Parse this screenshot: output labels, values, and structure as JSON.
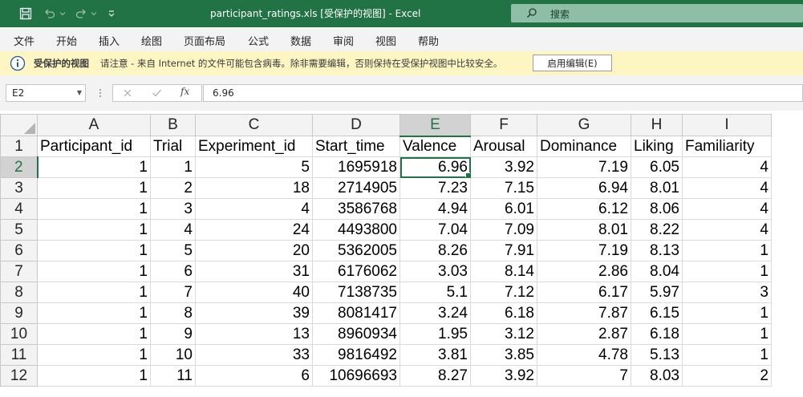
{
  "titlebar": {
    "title": "participant_ratings.xls  [受保护的视图]  -  Excel",
    "search_label": "搜索"
  },
  "menu": [
    "文件",
    "开始",
    "插入",
    "绘图",
    "页面布局",
    "公式",
    "数据",
    "审阅",
    "视图",
    "帮助"
  ],
  "protected_view": {
    "title": "受保护的视图",
    "message": "请注意 - 来自 Internet 的文件可能包含病毒。除非需要编辑，否则保持在受保护视图中比较安全。",
    "enable_button": "启用编辑(E)"
  },
  "formula_bar": {
    "name_box": "E2",
    "fx_label": "fx",
    "value": "6.96"
  },
  "grid": {
    "columns": [
      "A",
      "B",
      "C",
      "D",
      "E",
      "F",
      "G",
      "H",
      "I"
    ],
    "selected_column": "E",
    "selected_row": "2",
    "rows": [
      {
        "n": "1",
        "cells": [
          "Participant_id",
          "Trial",
          "Experiment_id",
          "Start_time",
          "Valence",
          "Arousal",
          "Dominance",
          "Liking",
          "Familiarity"
        ]
      },
      {
        "n": "2",
        "cells": [
          "1",
          "1",
          "5",
          "1695918",
          "6.96",
          "3.92",
          "7.19",
          "6.05",
          "4"
        ]
      },
      {
        "n": "3",
        "cells": [
          "1",
          "2",
          "18",
          "2714905",
          "7.23",
          "7.15",
          "6.94",
          "8.01",
          "4"
        ]
      },
      {
        "n": "4",
        "cells": [
          "1",
          "3",
          "4",
          "3586768",
          "4.94",
          "6.01",
          "6.12",
          "8.06",
          "4"
        ]
      },
      {
        "n": "5",
        "cells": [
          "1",
          "4",
          "24",
          "4493800",
          "7.04",
          "7.09",
          "8.01",
          "8.22",
          "4"
        ]
      },
      {
        "n": "6",
        "cells": [
          "1",
          "5",
          "20",
          "5362005",
          "8.26",
          "7.91",
          "7.19",
          "8.13",
          "1"
        ]
      },
      {
        "n": "7",
        "cells": [
          "1",
          "6",
          "31",
          "6176062",
          "3.03",
          "8.14",
          "2.86",
          "8.04",
          "1"
        ]
      },
      {
        "n": "8",
        "cells": [
          "1",
          "7",
          "40",
          "7138735",
          "5.1",
          "7.12",
          "6.17",
          "5.97",
          "3"
        ]
      },
      {
        "n": "9",
        "cells": [
          "1",
          "8",
          "39",
          "8081417",
          "3.24",
          "6.18",
          "7.87",
          "6.15",
          "1"
        ]
      },
      {
        "n": "10",
        "cells": [
          "1",
          "9",
          "13",
          "8960934",
          "1.95",
          "3.12",
          "2.87",
          "6.18",
          "1"
        ]
      },
      {
        "n": "11",
        "cells": [
          "1",
          "10",
          "33",
          "9816492",
          "3.81",
          "3.85",
          "4.78",
          "5.13",
          "1"
        ]
      },
      {
        "n": "12",
        "cells": [
          "1",
          "11",
          "6",
          "10696693",
          "8.27",
          "3.92",
          "7",
          "8.03",
          "2"
        ]
      }
    ]
  },
  "colors": {
    "excel_green": "#217346",
    "protected_bar": "#fdf6c3",
    "search_box": "#8fbea6"
  }
}
